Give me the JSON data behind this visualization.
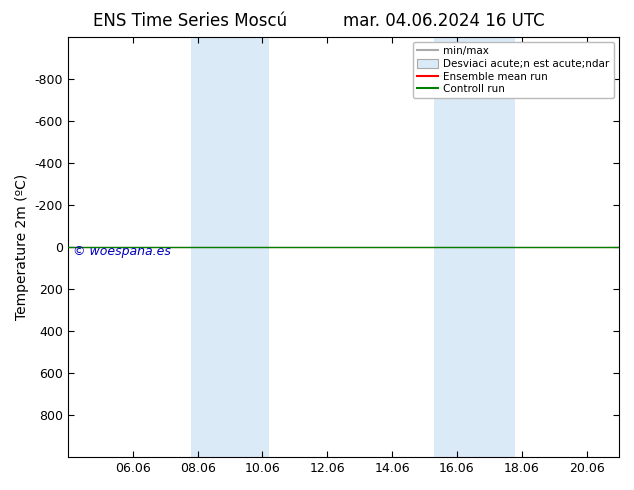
{
  "title_left": "ENS Time Series Moscú",
  "title_right": "mar. 04.06.2024 16 UTC",
  "ylabel": "Temperature 2m (ºC)",
  "ylim": [
    -1000,
    1000
  ],
  "yticks": [
    -800,
    -600,
    -400,
    -200,
    0,
    200,
    400,
    600,
    800
  ],
  "xtick_labels": [
    "06.06",
    "08.06",
    "10.06",
    "12.06",
    "14.06",
    "16.06",
    "18.06",
    "20.06"
  ],
  "xtick_positions": [
    2,
    4,
    6,
    8,
    10,
    12,
    14,
    16
  ],
  "xlim": [
    0,
    17.0
  ],
  "shade_bands": [
    {
      "xmin": 3.8,
      "xmax": 6.2,
      "color": "#daeaf7"
    },
    {
      "xmin": 11.3,
      "xmax": 13.8,
      "color": "#daeaf7"
    }
  ],
  "green_line_y": 0,
  "red_line_y": 0,
  "watermark": "© woespana.es",
  "watermark_color": "#0000bb",
  "legend_label1": "min/max",
  "legend_label2": "Desviaci acute;n est acute;ndar",
  "legend_label3": "Ensemble mean run",
  "legend_label4": "Controll run",
  "bg_color": "#ffffff",
  "title_fontsize": 12,
  "tick_fontsize": 9,
  "ylabel_fontsize": 10,
  "watermark_fontsize": 9
}
